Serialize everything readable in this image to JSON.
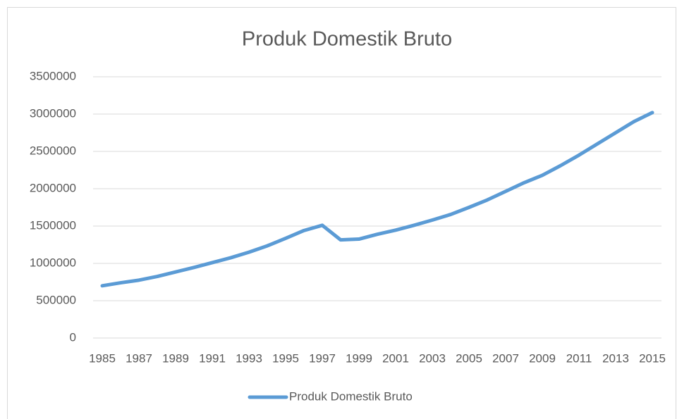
{
  "chart_data": {
    "type": "line",
    "title": "Produk Domestik Bruto",
    "categories": [
      "1985",
      null,
      "1987",
      null,
      "1989",
      null,
      "1991",
      null,
      "1993",
      null,
      "1995",
      null,
      "1997",
      null,
      "1999",
      null,
      "2001",
      null,
      "2003",
      null,
      "2005",
      null,
      "2007",
      null,
      "2009",
      null,
      "2011",
      null,
      "2013",
      null,
      "2015"
    ],
    "series": [
      {
        "name": "Produk Domestik Bruto",
        "color": "#5b9bd5",
        "values": [
          700000,
          740000,
          775000,
          825000,
          885000,
          945000,
          1010000,
          1075000,
          1150000,
          1235000,
          1335000,
          1440000,
          1510000,
          1315000,
          1325000,
          1390000,
          1445000,
          1510000,
          1580000,
          1655000,
          1750000,
          1850000,
          1965000,
          2080000,
          2180000,
          2310000,
          2450000,
          2600000,
          2750000,
          2900000,
          3020000
        ]
      }
    ],
    "ylim": [
      0,
      3500000
    ],
    "yticks": [
      0,
      500000,
      1000000,
      1500000,
      2000000,
      2500000,
      3000000,
      3500000
    ],
    "grid": true,
    "legend": "bottom"
  }
}
